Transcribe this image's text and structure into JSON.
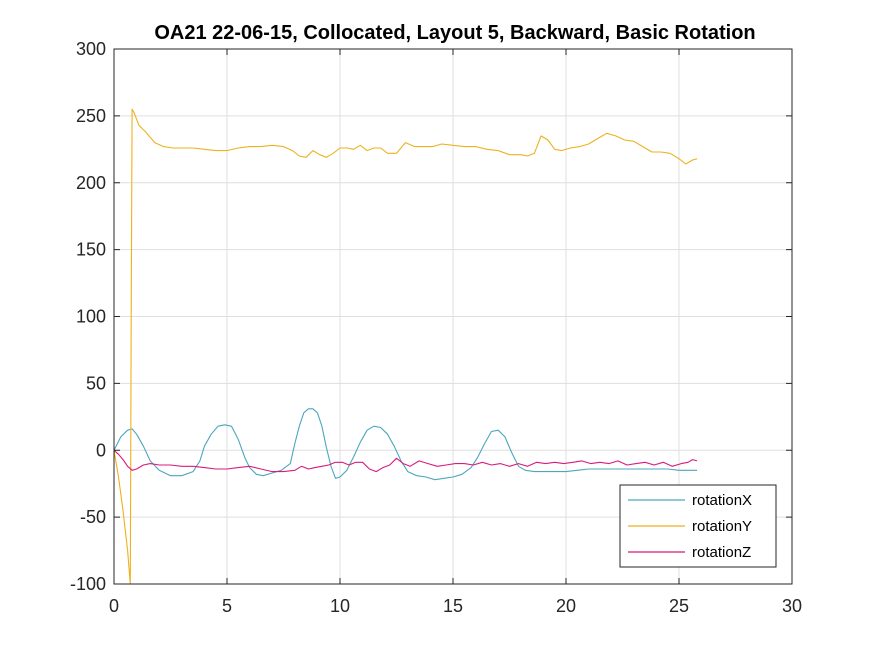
{
  "chart_data": {
    "type": "line",
    "title": "OA21 22-06-15, Collocated, Layout 5, Backward, Basic Rotation",
    "xlabel": "",
    "ylabel": "",
    "xlim": [
      0,
      30
    ],
    "ylim": [
      -100,
      300
    ],
    "xticks": [
      0,
      5,
      10,
      15,
      20,
      25,
      30
    ],
    "yticks": [
      -100,
      -50,
      0,
      50,
      100,
      150,
      200,
      250,
      300
    ],
    "grid": true,
    "legend_position": "bottom-right",
    "series": [
      {
        "name": "rotationX",
        "color": "#4DA6BD",
        "x": [
          0,
          0.3,
          0.6,
          0.8,
          1.0,
          1.3,
          1.6,
          2.0,
          2.5,
          3.0,
          3.5,
          3.8,
          4.0,
          4.3,
          4.6,
          4.9,
          5.2,
          5.5,
          5.8,
          6.0,
          6.3,
          6.6,
          7.0,
          7.4,
          7.8,
          8.0,
          8.2,
          8.4,
          8.6,
          8.8,
          9.0,
          9.2,
          9.4,
          9.6,
          9.8,
          10.0,
          10.3,
          10.6,
          10.9,
          11.2,
          11.5,
          11.8,
          12.1,
          12.4,
          12.7,
          13.0,
          13.4,
          13.8,
          14.2,
          14.6,
          15.0,
          15.4,
          15.8,
          16.1,
          16.4,
          16.7,
          17.0,
          17.3,
          17.6,
          17.9,
          18.2,
          18.6,
          19.0,
          19.5,
          20.0,
          20.5,
          21.0,
          21.5,
          22.0,
          22.5,
          23.0,
          23.5,
          24.0,
          24.5,
          25.0,
          25.5,
          25.8
        ],
        "y": [
          0,
          10,
          15,
          16,
          12,
          3,
          -8,
          -15,
          -19,
          -19,
          -16,
          -8,
          3,
          12,
          18,
          19,
          18,
          8,
          -6,
          -13,
          -18,
          -19,
          -17,
          -15,
          -10,
          5,
          18,
          28,
          31,
          31,
          28,
          18,
          2,
          -12,
          -21,
          -20,
          -15,
          -5,
          6,
          15,
          18,
          17,
          12,
          3,
          -8,
          -16,
          -19,
          -20,
          -22,
          -21,
          -20,
          -18,
          -13,
          -5,
          5,
          14,
          15,
          10,
          -2,
          -12,
          -15,
          -16,
          -16,
          -16,
          -16,
          -15,
          -14,
          -14,
          -14,
          -14,
          -14,
          -14,
          -14,
          -14,
          -15,
          -15,
          -15
        ]
      },
      {
        "name": "rotationY",
        "color": "#EDB120",
        "x": [
          0,
          0.2,
          0.4,
          0.6,
          0.72,
          0.76,
          0.8,
          0.9,
          1.1,
          1.4,
          1.8,
          2.2,
          2.6,
          3.0,
          3.5,
          4.0,
          4.5,
          5.0,
          5.5,
          6.0,
          6.5,
          7.0,
          7.5,
          7.9,
          8.2,
          8.5,
          8.8,
          9.1,
          9.4,
          9.7,
          10.0,
          10.3,
          10.6,
          10.9,
          11.2,
          11.5,
          11.8,
          12.1,
          12.5,
          12.9,
          13.3,
          13.7,
          14.1,
          14.5,
          15.0,
          15.5,
          16.0,
          16.5,
          17.0,
          17.5,
          18.0,
          18.3,
          18.6,
          18.9,
          19.2,
          19.5,
          19.8,
          20.2,
          20.6,
          21.0,
          21.4,
          21.8,
          22.2,
          22.6,
          23.0,
          23.4,
          23.8,
          24.2,
          24.6,
          25.0,
          25.3,
          25.6,
          25.8
        ],
        "y": [
          0,
          -20,
          -45,
          -75,
          -100,
          100,
          255,
          252,
          243,
          238,
          230,
          227,
          226,
          226,
          226,
          225,
          224,
          224,
          226,
          227,
          227,
          228,
          227,
          224,
          220,
          219,
          224,
          221,
          219,
          222,
          226,
          226,
          225,
          228,
          224,
          226,
          226,
          222,
          222,
          230,
          227,
          227,
          227,
          229,
          228,
          227,
          227,
          225,
          224,
          221,
          221,
          220,
          222,
          235,
          232,
          225,
          224,
          226,
          227,
          229,
          233,
          237,
          235,
          232,
          231,
          227,
          223,
          223,
          222,
          218,
          214,
          217,
          218
        ]
      },
      {
        "name": "rotationZ",
        "color": "#D81B7D",
        "x": [
          0,
          0.2,
          0.4,
          0.6,
          0.8,
          1.0,
          1.3,
          1.6,
          2.0,
          2.5,
          3.0,
          3.5,
          4.0,
          4.5,
          5.0,
          5.5,
          6.0,
          6.5,
          7.0,
          7.5,
          8.0,
          8.3,
          8.6,
          8.9,
          9.2,
          9.5,
          9.8,
          10.1,
          10.4,
          10.7,
          11.0,
          11.3,
          11.6,
          11.9,
          12.2,
          12.5,
          12.8,
          13.1,
          13.5,
          13.9,
          14.3,
          14.7,
          15.1,
          15.5,
          15.9,
          16.3,
          16.7,
          17.1,
          17.5,
          17.9,
          18.3,
          18.7,
          19.1,
          19.5,
          19.9,
          20.3,
          20.7,
          21.1,
          21.5,
          21.9,
          22.3,
          22.7,
          23.1,
          23.5,
          23.9,
          24.3,
          24.7,
          25.1,
          25.4,
          25.6,
          25.8
        ],
        "y": [
          0,
          -3,
          -7,
          -12,
          -15,
          -14,
          -11,
          -10,
          -11,
          -11,
          -12,
          -12,
          -13,
          -14,
          -14,
          -13,
          -12,
          -14,
          -16,
          -16,
          -15,
          -12,
          -14,
          -13,
          -12,
          -11,
          -9,
          -9,
          -11,
          -9,
          -9,
          -14,
          -16,
          -13,
          -11,
          -6,
          -10,
          -12,
          -8,
          -10,
          -12,
          -11,
          -10,
          -10,
          -11,
          -9,
          -11,
          -10,
          -12,
          -10,
          -12,
          -9,
          -10,
          -9,
          -10,
          -9,
          -8,
          -10,
          -9,
          -10,
          -8,
          -11,
          -10,
          -9,
          -11,
          -9,
          -12,
          -10,
          -9,
          -7,
          -8
        ]
      }
    ]
  }
}
